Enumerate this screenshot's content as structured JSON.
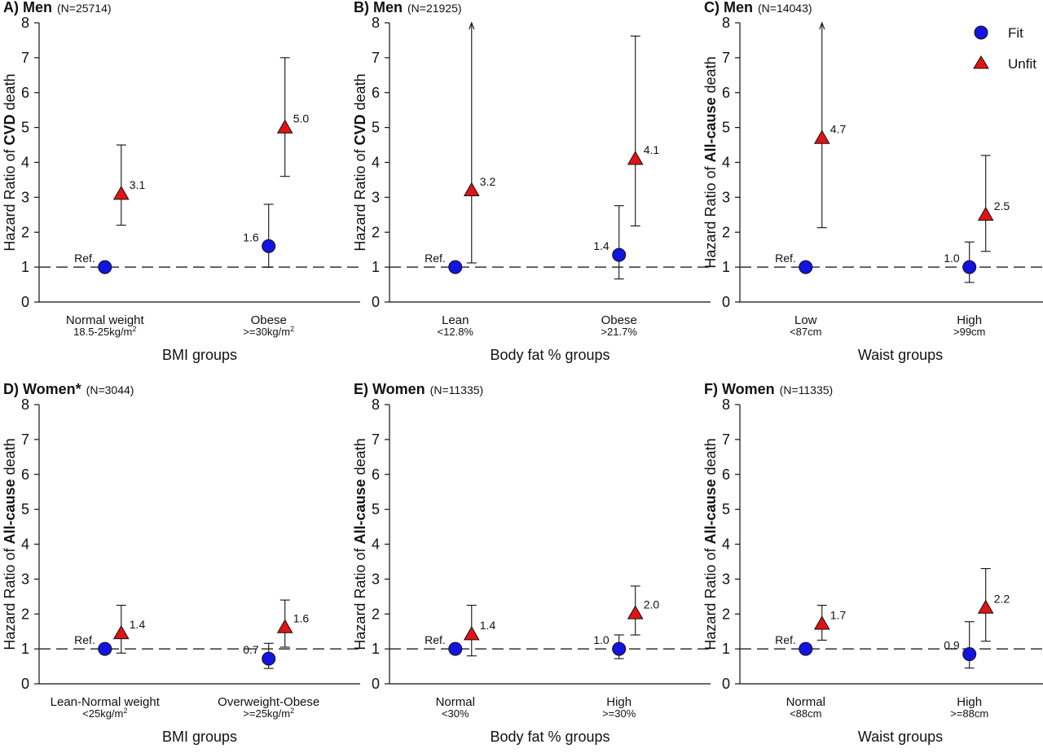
{
  "legend": {
    "fit_label": "Fit",
    "unfit_label": "Unfit",
    "fit_color": "#1414e0",
    "unfit_color": "#e01414"
  },
  "chart_data": [
    {
      "type": "scatter",
      "title_bold": "A) Men",
      "title_rest": "(N=25714)",
      "ylabel_prefix": "Hazard Ratio of ",
      "ylabel_bold": "CVD",
      "ylabel_suffix": " death",
      "xlabel": "BMI groups",
      "ylim": [
        0,
        8
      ],
      "reference_line": 1,
      "categories": [
        {
          "label": "Normal weight",
          "sub": "18.5-25kg/m",
          "sup": "2"
        },
        {
          "label": "Obese",
          "sub": ">=30kg/m",
          "sup": "2"
        }
      ],
      "points": [
        {
          "cat": 0,
          "series": "Fit",
          "value": 1.0,
          "label": "Ref.",
          "label_side": "left"
        },
        {
          "cat": 0,
          "series": "Unfit",
          "value": 3.1,
          "low": 2.2,
          "high": 4.5,
          "label": "3.1",
          "label_side": "right"
        },
        {
          "cat": 1,
          "series": "Fit",
          "value": 1.6,
          "low": 1.0,
          "high": 2.8,
          "label": "1.6",
          "label_side": "left"
        },
        {
          "cat": 1,
          "series": "Unfit",
          "value": 5.0,
          "low": 3.6,
          "high": 7.0,
          "label": "5.0",
          "label_side": "right"
        }
      ]
    },
    {
      "type": "scatter",
      "title_bold": "B) Men",
      "title_rest": "(N=21925)",
      "ylabel_prefix": "Hazard Ratio of ",
      "ylabel_bold": "CVD",
      "ylabel_suffix": " death",
      "xlabel": "Body fat % groups",
      "ylim": [
        0,
        8
      ],
      "reference_line": 1,
      "categories": [
        {
          "label": "Lean",
          "sub": "<12.8%",
          "sup": ""
        },
        {
          "label": "Obese",
          "sub": ">21.7%",
          "sup": ""
        }
      ],
      "points": [
        {
          "cat": 0,
          "series": "Fit",
          "value": 1.0,
          "label": "Ref.",
          "label_side": "left"
        },
        {
          "cat": 0,
          "series": "Unfit",
          "value": 3.2,
          "low": 1.12,
          "high": 8.0,
          "arrow": true,
          "label": "3.2",
          "label_side": "right"
        },
        {
          "cat": 1,
          "series": "Fit",
          "value": 1.35,
          "low": 0.66,
          "high": 2.76,
          "label": "1.4",
          "label_side": "left"
        },
        {
          "cat": 1,
          "series": "Unfit",
          "value": 4.1,
          "low": 2.18,
          "high": 7.62,
          "label": "4.1",
          "label_side": "right"
        }
      ]
    },
    {
      "type": "scatter",
      "title_bold": "C) Men",
      "title_rest": "(N=14043)",
      "ylabel_prefix": "Hazard Ratio of ",
      "ylabel_bold": "All-cause",
      "ylabel_suffix": " death",
      "xlabel": "Waist groups",
      "ylim": [
        0,
        8
      ],
      "reference_line": 1,
      "categories": [
        {
          "label": "Low",
          "sub": "<87cm",
          "sup": ""
        },
        {
          "label": "High",
          "sub": ">99cm",
          "sup": ""
        }
      ],
      "points": [
        {
          "cat": 0,
          "series": "Fit",
          "value": 1.0,
          "label": "Ref.",
          "label_side": "left"
        },
        {
          "cat": 0,
          "series": "Unfit",
          "value": 4.7,
          "low": 2.13,
          "high": 8.0,
          "arrow": true,
          "label": "4.7",
          "label_side": "right"
        },
        {
          "cat": 1,
          "series": "Fit",
          "value": 1.0,
          "low": 0.56,
          "high": 1.72,
          "label": "1.0",
          "label_side": "left"
        },
        {
          "cat": 1,
          "series": "Unfit",
          "value": 2.5,
          "low": 1.45,
          "high": 4.2,
          "label": "2.5",
          "label_side": "right"
        }
      ]
    },
    {
      "type": "scatter",
      "title_bold": "D) Women*",
      "title_rest": "(N=3044)",
      "ylabel_prefix": "Hazard Ratio of ",
      "ylabel_bold": "All-cause",
      "ylabel_suffix": " death",
      "xlabel": "BMI groups",
      "ylim": [
        0,
        8
      ],
      "reference_line": 1,
      "categories": [
        {
          "label": "Lean-Normal weight",
          "sub": "<25kg/m",
          "sup": "2"
        },
        {
          "label": "Overweight-Obese",
          "sub": ">=25kg/m",
          "sup": "2"
        }
      ],
      "points": [
        {
          "cat": 0,
          "series": "Fit",
          "value": 1.0,
          "label": "Ref.",
          "label_side": "left"
        },
        {
          "cat": 0,
          "series": "Unfit",
          "value": 1.45,
          "low": 0.88,
          "high": 2.25,
          "label": "1.4",
          "label_side": "right"
        },
        {
          "cat": 1,
          "series": "Fit",
          "value": 0.72,
          "low": 0.44,
          "high": 1.16,
          "label": "0.7",
          "label_side": "left"
        },
        {
          "cat": 1,
          "series": "Unfit",
          "value": 1.62,
          "low": 1.05,
          "high": 2.4,
          "label": "1.6",
          "label_side": "right"
        }
      ]
    },
    {
      "type": "scatter",
      "title_bold": "E) Women",
      "title_rest": "(N=11335)",
      "ylabel_prefix": "Hazard Ratio of ",
      "ylabel_bold": "All-cause",
      "ylabel_suffix": " death",
      "xlabel": "Body fat % groups",
      "ylim": [
        0,
        8
      ],
      "reference_line": 1,
      "categories": [
        {
          "label": "Normal",
          "sub": "<30%",
          "sup": ""
        },
        {
          "label": "High",
          "sub": ">=30%",
          "sup": ""
        }
      ],
      "points": [
        {
          "cat": 0,
          "series": "Fit",
          "value": 1.0,
          "label": "Ref.",
          "label_side": "left"
        },
        {
          "cat": 0,
          "series": "Unfit",
          "value": 1.42,
          "low": 0.8,
          "high": 2.25,
          "label": "1.4",
          "label_side": "right"
        },
        {
          "cat": 1,
          "series": "Fit",
          "value": 1.0,
          "low": 0.72,
          "high": 1.4,
          "label": "1.0",
          "label_side": "left"
        },
        {
          "cat": 1,
          "series": "Unfit",
          "value": 2.02,
          "low": 1.4,
          "high": 2.8,
          "label": "2.0",
          "label_side": "right"
        }
      ]
    },
    {
      "type": "scatter",
      "title_bold": "F) Women",
      "title_rest": "(N=11335)",
      "ylabel_prefix": "Hazard Ratio of ",
      "ylabel_bold": "All-cause",
      "ylabel_suffix": " death",
      "xlabel": "Waist groups",
      "ylim": [
        0,
        8
      ],
      "reference_line": 1,
      "categories": [
        {
          "label": "Normal",
          "sub": "<88cm",
          "sup": ""
        },
        {
          "label": "High",
          "sub": ">=88cm",
          "sup": ""
        }
      ],
      "points": [
        {
          "cat": 0,
          "series": "Fit",
          "value": 1.0,
          "label": "Ref.",
          "label_side": "left"
        },
        {
          "cat": 0,
          "series": "Unfit",
          "value": 1.72,
          "low": 1.25,
          "high": 2.25,
          "label": "1.7",
          "label_side": "right"
        },
        {
          "cat": 1,
          "series": "Fit",
          "value": 0.85,
          "low": 0.45,
          "high": 1.78,
          "label": "0.9",
          "label_side": "left"
        },
        {
          "cat": 1,
          "series": "Unfit",
          "value": 2.18,
          "low": 1.22,
          "high": 3.3,
          "label": "2.2",
          "label_side": "right"
        }
      ]
    }
  ]
}
